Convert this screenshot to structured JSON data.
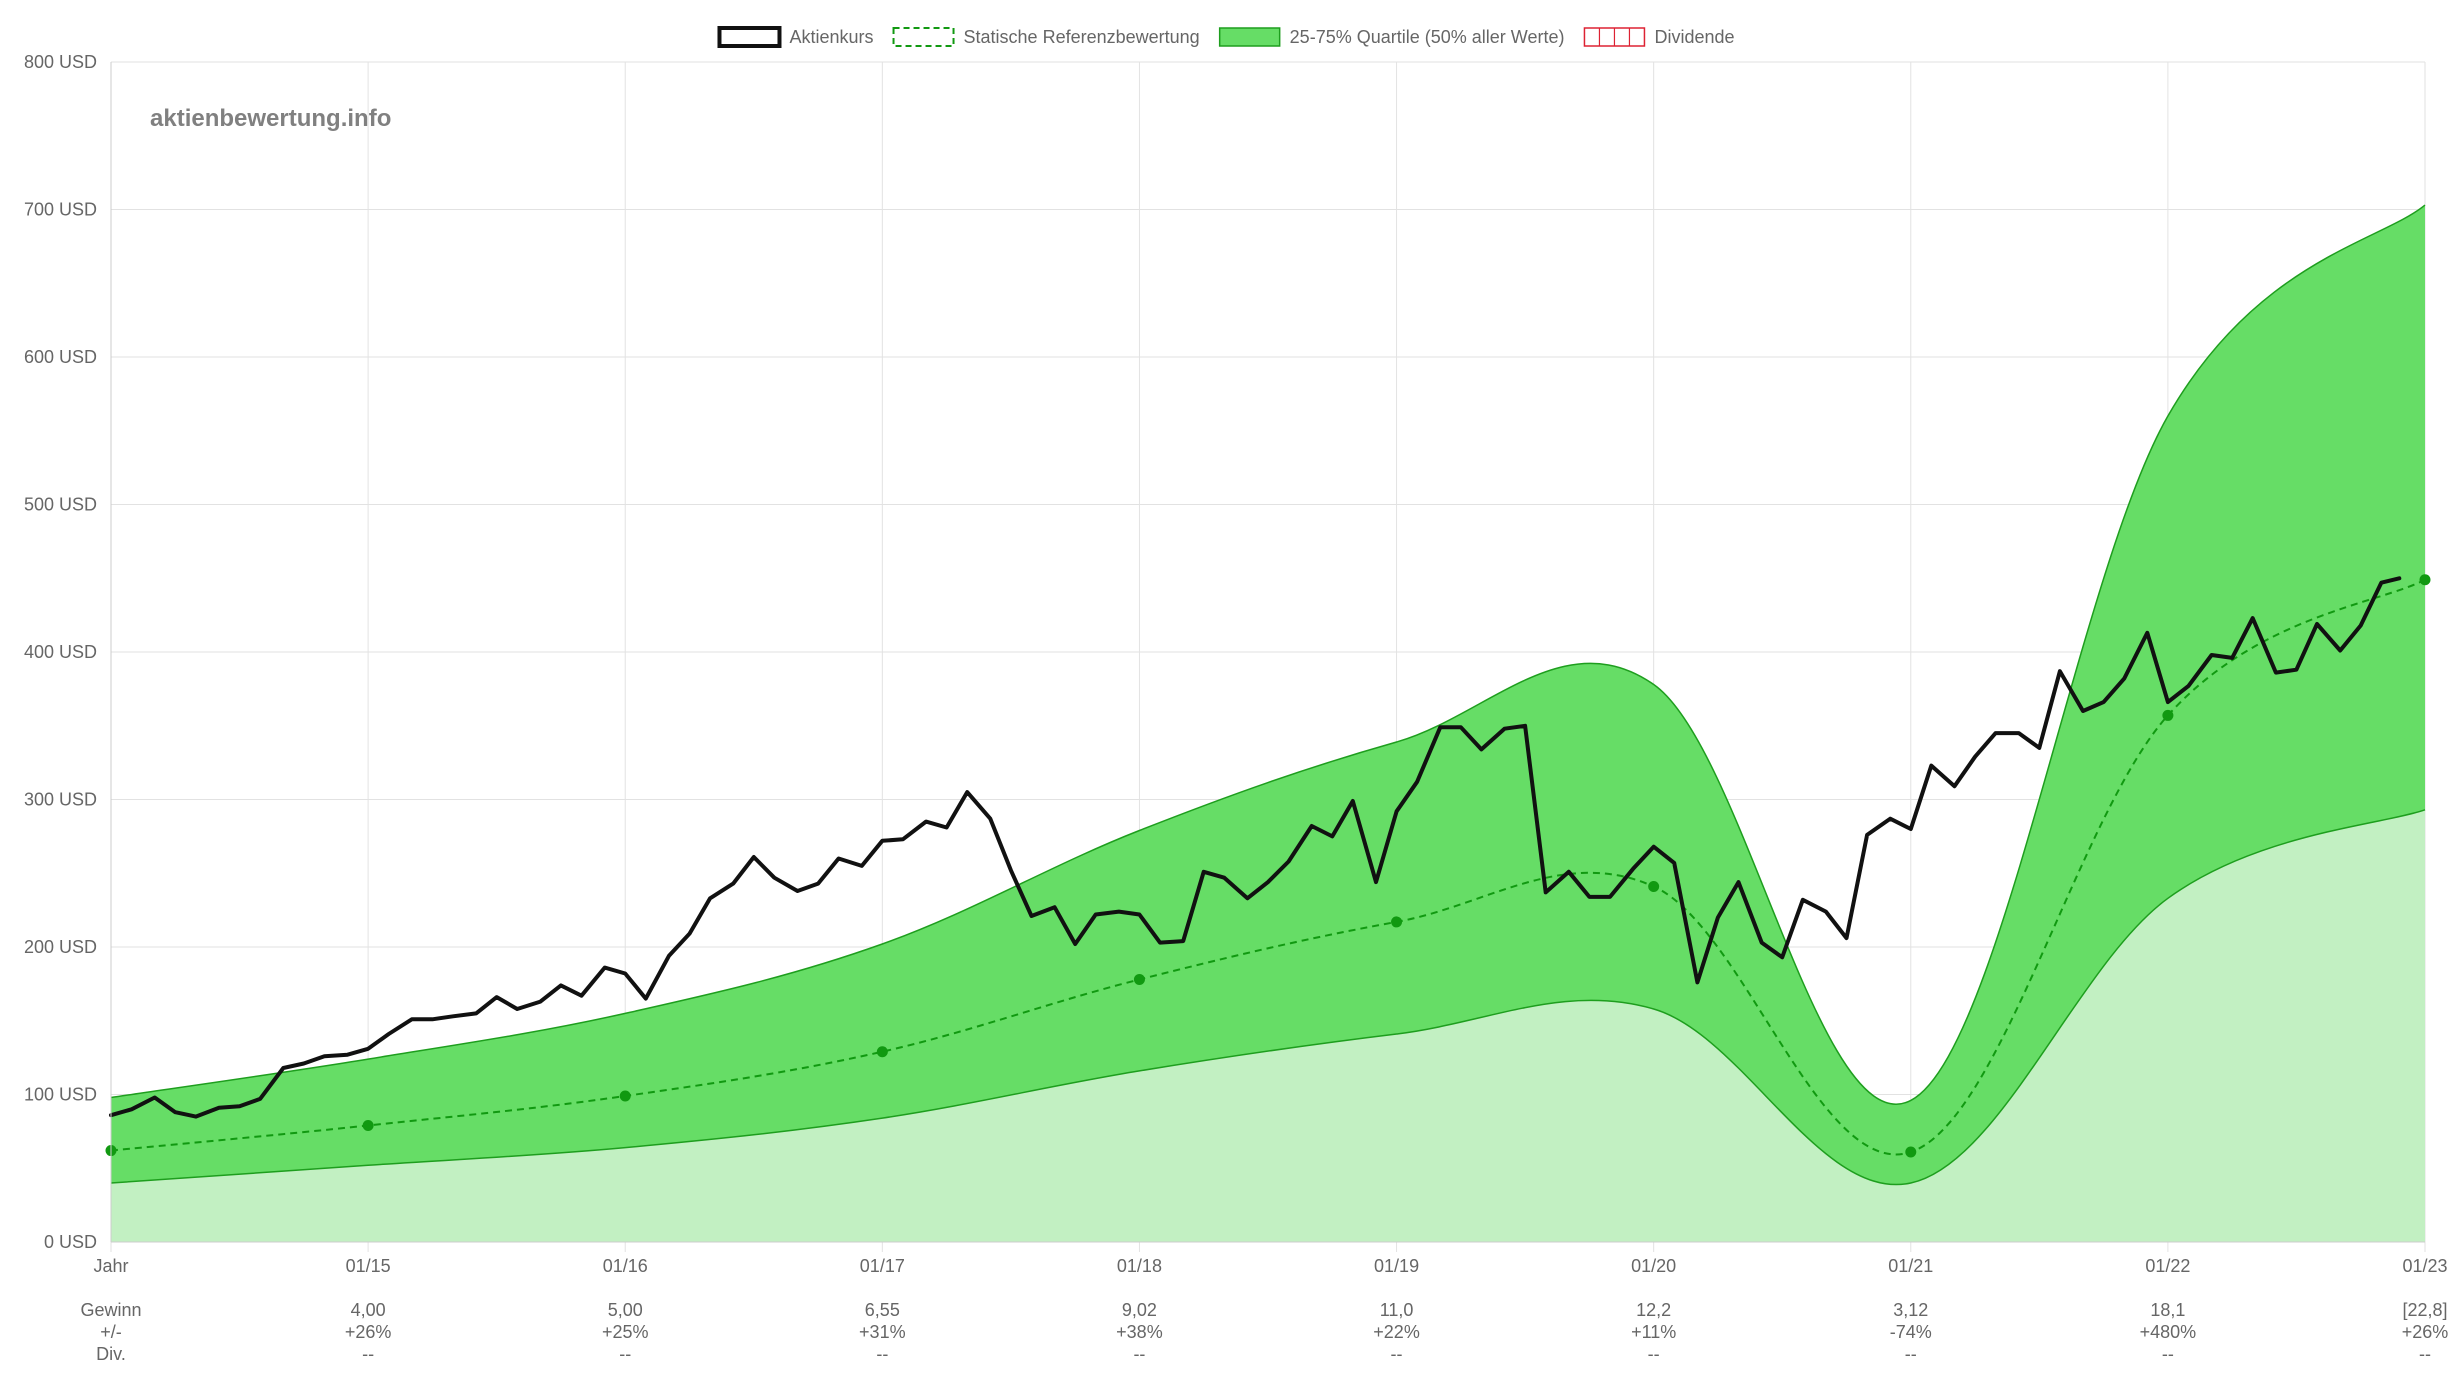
{
  "watermark": "aktienbewertung.info",
  "colors": {
    "price": "#111111",
    "reference": "#119911",
    "quartile_fill": "#66dd66",
    "quartile_stroke": "#1e9e1e",
    "lower_fill": "#c2f0c2",
    "dividend": "#dd2233",
    "grid": "#e2e2e2",
    "text": "#666666"
  },
  "chart_data": {
    "type": "line",
    "legend_position": "top-center",
    "grid": true,
    "legend": [
      {
        "label": "Aktienkurs",
        "style": "solid-black"
      },
      {
        "label": "Statische Referenzbewertung",
        "style": "dashed-green"
      },
      {
        "label": "25-75% Quartile (50% aller Werte)",
        "style": "green-fill"
      },
      {
        "label": "Dividende",
        "style": "red-hatched"
      }
    ],
    "y_ticks": [
      "0 USD",
      "100 USD",
      "200 USD",
      "300 USD",
      "400 USD",
      "500 USD",
      "600 USD",
      "700 USD",
      "800 USD"
    ],
    "ylim": [
      0,
      800
    ],
    "xlim": [
      2014,
      2023
    ],
    "x_ticks": [
      {
        "x": 2014,
        "label": "Jahr"
      },
      {
        "x": 2015,
        "label": "01/15"
      },
      {
        "x": 2016,
        "label": "01/16"
      },
      {
        "x": 2017,
        "label": "01/17"
      },
      {
        "x": 2018,
        "label": "01/18"
      },
      {
        "x": 2019,
        "label": "01/19"
      },
      {
        "x": 2020,
        "label": "01/20"
      },
      {
        "x": 2021,
        "label": "01/21"
      },
      {
        "x": 2022,
        "label": "01/22"
      },
      {
        "x": 2023,
        "label": "01/23"
      }
    ],
    "table_rows": [
      "Gewinn",
      "+/-",
      "Div."
    ],
    "table": [
      {
        "x": 2015,
        "gewinn": "4,00",
        "change": "+26%",
        "div": "--"
      },
      {
        "x": 2016,
        "gewinn": "5,00",
        "change": "+25%",
        "div": "--"
      },
      {
        "x": 2017,
        "gewinn": "6,55",
        "change": "+31%",
        "div": "--"
      },
      {
        "x": 2018,
        "gewinn": "9,02",
        "change": "+38%",
        "div": "--"
      },
      {
        "x": 2019,
        "gewinn": "11,0",
        "change": "+22%",
        "div": "--"
      },
      {
        "x": 2020,
        "gewinn": "12,2",
        "change": "+11%",
        "div": "--"
      },
      {
        "x": 2021,
        "gewinn": "3,12",
        "change": "-74%",
        "div": "--"
      },
      {
        "x": 2022,
        "gewinn": "18,1",
        "change": "+480%",
        "div": "--"
      },
      {
        "x": 2023,
        "gewinn": "[22,8]",
        "change": "+26%",
        "div": "--"
      }
    ],
    "reference": [
      [
        2014,
        62
      ],
      [
        2015,
        79
      ],
      [
        2016,
        99
      ],
      [
        2017,
        129
      ],
      [
        2018,
        178
      ],
      [
        2019,
        217
      ],
      [
        2020,
        241
      ],
      [
        2021,
        61
      ],
      [
        2022,
        357
      ],
      [
        2023,
        449
      ]
    ],
    "quartile_upper": [
      [
        2014,
        98
      ],
      [
        2015,
        124
      ],
      [
        2016,
        155
      ],
      [
        2017,
        202
      ],
      [
        2018,
        279
      ],
      [
        2019,
        339
      ],
      [
        2020,
        378
      ],
      [
        2021,
        96
      ],
      [
        2022,
        560
      ],
      [
        2023,
        703
      ]
    ],
    "quartile_lower": [
      [
        2014,
        40
      ],
      [
        2015,
        52
      ],
      [
        2016,
        64
      ],
      [
        2017,
        84
      ],
      [
        2018,
        116
      ],
      [
        2019,
        141
      ],
      [
        2020,
        158
      ],
      [
        2021,
        40
      ],
      [
        2022,
        233
      ],
      [
        2023,
        293
      ]
    ],
    "price": [
      [
        2014.0,
        86
      ],
      [
        2014.08,
        90
      ],
      [
        2014.17,
        98
      ],
      [
        2014.25,
        88
      ],
      [
        2014.33,
        85
      ],
      [
        2014.42,
        91
      ],
      [
        2014.5,
        92
      ],
      [
        2014.58,
        97
      ],
      [
        2014.67,
        118
      ],
      [
        2014.75,
        121
      ],
      [
        2014.83,
        126
      ],
      [
        2014.92,
        127
      ],
      [
        2015.0,
        131
      ],
      [
        2015.08,
        141
      ],
      [
        2015.17,
        151
      ],
      [
        2015.25,
        151
      ],
      [
        2015.33,
        153
      ],
      [
        2015.42,
        155
      ],
      [
        2015.5,
        166
      ],
      [
        2015.58,
        158
      ],
      [
        2015.67,
        163
      ],
      [
        2015.75,
        174
      ],
      [
        2015.83,
        167
      ],
      [
        2015.92,
        186
      ],
      [
        2016.0,
        182
      ],
      [
        2016.08,
        165
      ],
      [
        2016.17,
        194
      ],
      [
        2016.25,
        209
      ],
      [
        2016.33,
        233
      ],
      [
        2016.42,
        243
      ],
      [
        2016.5,
        261
      ],
      [
        2016.58,
        247
      ],
      [
        2016.67,
        238
      ],
      [
        2016.75,
        243
      ],
      [
        2016.83,
        260
      ],
      [
        2016.92,
        255
      ],
      [
        2017.0,
        272
      ],
      [
        2017.08,
        273
      ],
      [
        2017.17,
        285
      ],
      [
        2017.25,
        281
      ],
      [
        2017.33,
        305
      ],
      [
        2017.42,
        287
      ],
      [
        2017.5,
        252
      ],
      [
        2017.58,
        221
      ],
      [
        2017.67,
        227
      ],
      [
        2017.75,
        202
      ],
      [
        2017.83,
        222
      ],
      [
        2017.92,
        224
      ],
      [
        2018.0,
        222
      ],
      [
        2018.08,
        203
      ],
      [
        2018.17,
        204
      ],
      [
        2018.25,
        251
      ],
      [
        2018.33,
        247
      ],
      [
        2018.42,
        233
      ],
      [
        2018.5,
        244
      ],
      [
        2018.58,
        258
      ],
      [
        2018.67,
        282
      ],
      [
        2018.75,
        275
      ],
      [
        2018.83,
        299
      ],
      [
        2018.92,
        244
      ],
      [
        2019.0,
        292
      ],
      [
        2019.08,
        312
      ],
      [
        2019.17,
        349
      ],
      [
        2019.25,
        349
      ],
      [
        2019.33,
        334
      ],
      [
        2019.42,
        348
      ],
      [
        2019.5,
        350
      ],
      [
        2019.58,
        237
      ],
      [
        2019.67,
        251
      ],
      [
        2019.75,
        234
      ],
      [
        2019.83,
        234
      ],
      [
        2019.92,
        253
      ],
      [
        2020.0,
        268
      ],
      [
        2020.08,
        257
      ],
      [
        2020.17,
        176
      ],
      [
        2020.25,
        220
      ],
      [
        2020.33,
        244
      ],
      [
        2020.42,
        203
      ],
      [
        2020.5,
        193
      ],
      [
        2020.58,
        232
      ],
      [
        2020.67,
        224
      ],
      [
        2020.75,
        206
      ],
      [
        2020.83,
        276
      ],
      [
        2020.92,
        287
      ],
      [
        2021.0,
        280
      ],
      [
        2021.08,
        323
      ],
      [
        2021.17,
        309
      ],
      [
        2021.25,
        329
      ],
      [
        2021.33,
        345
      ],
      [
        2021.42,
        345
      ],
      [
        2021.5,
        335
      ],
      [
        2021.58,
        387
      ],
      [
        2021.67,
        360
      ],
      [
        2021.75,
        366
      ],
      [
        2021.83,
        382
      ],
      [
        2021.92,
        413
      ],
      [
        2022.0,
        366
      ],
      [
        2022.08,
        377
      ],
      [
        2022.17,
        398
      ],
      [
        2022.25,
        396
      ],
      [
        2022.33,
        423
      ],
      [
        2022.42,
        386
      ],
      [
        2022.5,
        388
      ],
      [
        2022.58,
        419
      ],
      [
        2022.67,
        401
      ],
      [
        2022.75,
        418
      ],
      [
        2022.83,
        447
      ],
      [
        2022.9,
        450
      ]
    ]
  }
}
